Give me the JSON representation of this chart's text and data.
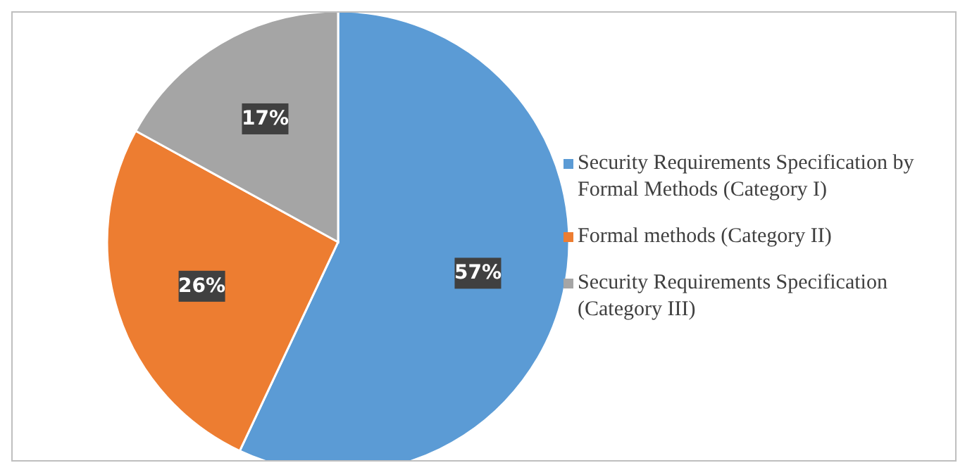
{
  "chart_data": {
    "type": "pie",
    "categories": [
      "Security Requirements Specification by Formal Methods (Category I)",
      "Formal methods (Category II)",
      "Security Requirements Specification (Category III)"
    ],
    "values": [
      57,
      26,
      17
    ],
    "value_labels": [
      "57%",
      "26%",
      "17%"
    ],
    "colors": [
      "#5b9bd5",
      "#ed7d31",
      "#a5a5a5"
    ],
    "legend": "right"
  }
}
